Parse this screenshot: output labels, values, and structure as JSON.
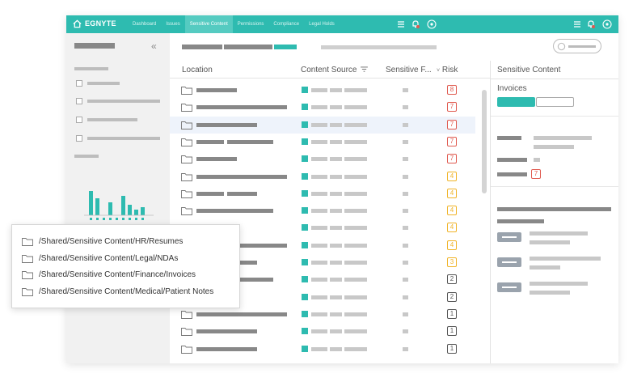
{
  "nav": {
    "logo": "EGNYTE",
    "items": [
      "Dashboard",
      "Issues",
      "Sensitive Content",
      "Permissions",
      "Compliance",
      "Legal Holds"
    ],
    "active_index": 2
  },
  "table": {
    "headers": {
      "location": "Location",
      "content_source": "Content Source",
      "sensitive": "Sensitive F...",
      "risk": "Risk"
    },
    "rows": [
      {
        "risk": "8",
        "level": "high"
      },
      {
        "risk": "7",
        "level": "high"
      },
      {
        "risk": "7",
        "level": "high",
        "selected": true
      },
      {
        "risk": "7",
        "level": "high"
      },
      {
        "risk": "7",
        "level": "high"
      },
      {
        "risk": "4",
        "level": "medium"
      },
      {
        "risk": "4",
        "level": "medium"
      },
      {
        "risk": "4",
        "level": "medium"
      },
      {
        "risk": "4",
        "level": "medium"
      },
      {
        "risk": "4",
        "level": "medium"
      },
      {
        "risk": "3",
        "level": "medium"
      },
      {
        "risk": "2",
        "level": "low"
      },
      {
        "risk": "2",
        "level": "low"
      },
      {
        "risk": "1",
        "level": "low"
      },
      {
        "risk": "1",
        "level": "low"
      },
      {
        "risk": "1",
        "level": "low"
      }
    ]
  },
  "right_panel": {
    "title": "Sensitive Content",
    "subtitle": "Invoices",
    "risk_value": "7"
  },
  "dropdown": {
    "items": [
      "/Shared/Sensitive Content/HR/Resumes",
      "/Shared/Sensitive Content/Legal/NDAs",
      "/Shared/Sensitive Content/Finance/Invoices",
      "/Shared/Sensitive Content/Medical/Patient Notes"
    ]
  },
  "colors": {
    "accent": "#2ebbb0",
    "risk_high": "#e05a4f",
    "risk_medium": "#f0b429",
    "risk_low": "#555555"
  },
  "icons": {
    "home": "home-icon",
    "menu": "hamburger-icon",
    "alerts": "bell-icon",
    "user": "user-icon",
    "folder": "folder-icon",
    "collapse": "double-chevron-left-icon",
    "filter": "filter-icon"
  }
}
